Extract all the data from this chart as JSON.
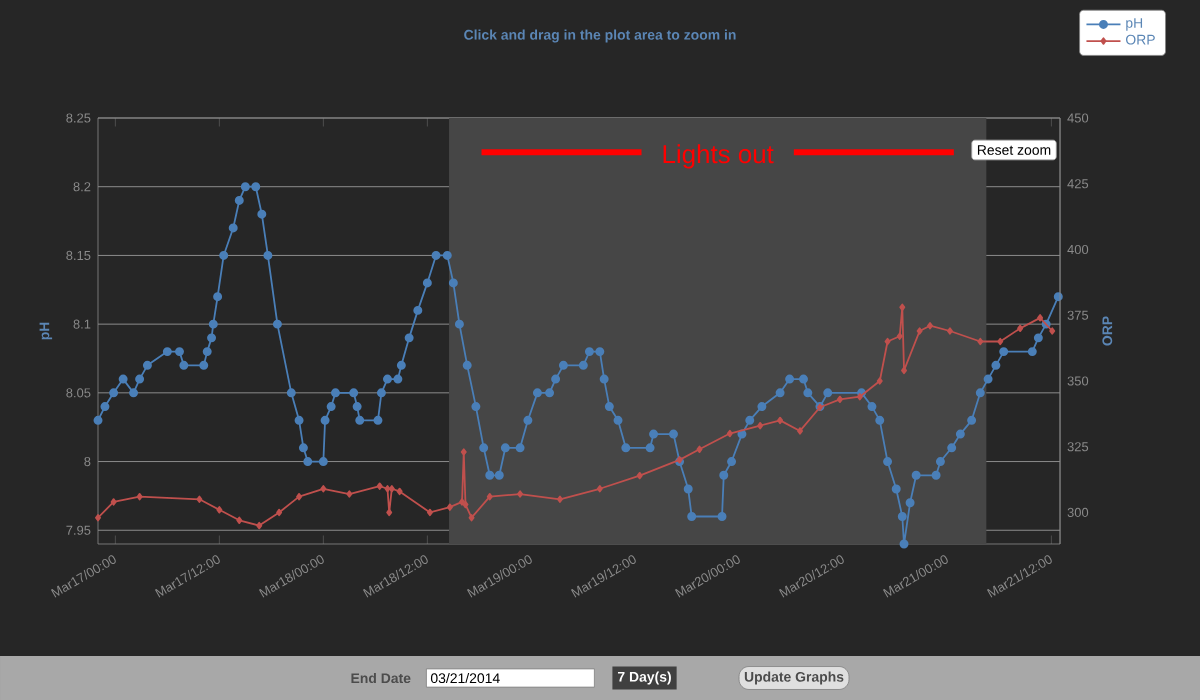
{
  "chart_data": {
    "type": "line",
    "subtitle": "Click and drag in the plot area to zoom in",
    "ylabel": "pH",
    "y2label": "ORP",
    "xlim": [
      "2014-03-16T22:00",
      "2014-03-21T13:00"
    ],
    "xticks": [
      {
        "value": "2014-03-17T00:00",
        "label": "Mar17/00:00"
      },
      {
        "value": "2014-03-17T12:00",
        "label": "Mar17/12:00"
      },
      {
        "value": "2014-03-18T00:00",
        "label": "Mar18/00:00"
      },
      {
        "value": "2014-03-18T12:00",
        "label": "Mar18/12:00"
      },
      {
        "value": "2014-03-19T00:00",
        "label": "Mar19/00:00"
      },
      {
        "value": "2014-03-19T12:00",
        "label": "Mar19/12:00"
      },
      {
        "value": "2014-03-20T00:00",
        "label": "Mar20/00:00"
      },
      {
        "value": "2014-03-20T12:00",
        "label": "Mar20/12:00"
      },
      {
        "value": "2014-03-21T00:00",
        "label": "Mar21/00:00"
      },
      {
        "value": "2014-03-21T12:00",
        "label": "Mar21/12:00"
      }
    ],
    "ylim": [
      7.94,
      8.25
    ],
    "yticks": [
      7.95,
      8,
      8.05,
      8.1,
      8.15,
      8.2,
      8.25
    ],
    "y2lim": [
      288,
      450
    ],
    "y2ticks": [
      300,
      325,
      350,
      375,
      400,
      425,
      450
    ],
    "grid": "y",
    "legend": "top right",
    "series": [
      {
        "name": "pH",
        "color": "#4a7fb8",
        "marker": "circle",
        "x": [
          "2014-03-16T22:00",
          "2014-03-16T22:48",
          "2014-03-16T23:48",
          "2014-03-17T00:54",
          "2014-03-17T02:06",
          "2014-03-17T02:48",
          "2014-03-17T03:42",
          "2014-03-17T06:00",
          "2014-03-17T07:24",
          "2014-03-17T07:54",
          "2014-03-17T10:12",
          "2014-03-17T10:36",
          "2014-03-17T11:06",
          "2014-03-17T11:18",
          "2014-03-17T11:48",
          "2014-03-17T12:30",
          "2014-03-17T13:36",
          "2014-03-17T14:18",
          "2014-03-17T15:00",
          "2014-03-17T16:12",
          "2014-03-17T16:54",
          "2014-03-17T17:36",
          "2014-03-17T18:42",
          "2014-03-17T20:18",
          "2014-03-17T21:12",
          "2014-03-17T21:42",
          "2014-03-17T22:12",
          "2014-03-18T00:00",
          "2014-03-18T00:12",
          "2014-03-18T00:54",
          "2014-03-18T01:24",
          "2014-03-18T03:30",
          "2014-03-18T03:54",
          "2014-03-18T04:12",
          "2014-03-18T06:18",
          "2014-03-18T06:42",
          "2014-03-18T07:24",
          "2014-03-18T08:36",
          "2014-03-18T09:00",
          "2014-03-18T09:54",
          "2014-03-18T10:54",
          "2014-03-18T12:00",
          "2014-03-18T13:00",
          "2014-03-18T14:18",
          "2014-03-18T15:00",
          "2014-03-18T15:42",
          "2014-03-18T16:36",
          "2014-03-18T17:36",
          "2014-03-18T18:30",
          "2014-03-18T19:12",
          "2014-03-18T20:18",
          "2014-03-18T21:00",
          "2014-03-18T22:42",
          "2014-03-18T23:36",
          "2014-03-19T00:42",
          "2014-03-19T02:06",
          "2014-03-19T02:48",
          "2014-03-19T03:42",
          "2014-03-19T06:00",
          "2014-03-19T06:42",
          "2014-03-19T07:54",
          "2014-03-19T08:24",
          "2014-03-19T09:00",
          "2014-03-19T10:00",
          "2014-03-19T10:54",
          "2014-03-19T13:42",
          "2014-03-19T14:06",
          "2014-03-19T16:24",
          "2014-03-19T17:06",
          "2014-03-19T18:06",
          "2014-03-19T18:30",
          "2014-03-19T22:00",
          "2014-03-19T22:12",
          "2014-03-19T23:06",
          "2014-03-20T00:18",
          "2014-03-20T01:12",
          "2014-03-20T02:36",
          "2014-03-20T04:42",
          "2014-03-20T05:48",
          "2014-03-20T07:24",
          "2014-03-20T07:54",
          "2014-03-20T09:18",
          "2014-03-20T10:12",
          "2014-03-20T14:06",
          "2014-03-20T15:18",
          "2014-03-20T16:12",
          "2014-03-20T17:06",
          "2014-03-20T18:06",
          "2014-03-20T18:48",
          "2014-03-20T19:00",
          "2014-03-20T19:42",
          "2014-03-20T20:24",
          "2014-03-20T22:42",
          "2014-03-20T23:12",
          "2014-03-21T00:30",
          "2014-03-21T01:30",
          "2014-03-21T02:48",
          "2014-03-21T03:48",
          "2014-03-21T04:42",
          "2014-03-21T05:36",
          "2014-03-21T06:30",
          "2014-03-21T09:48",
          "2014-03-21T10:30",
          "2014-03-21T11:24",
          "2014-03-21T12:48"
        ],
        "values": [
          8.03,
          8.04,
          8.05,
          8.06,
          8.05,
          8.06,
          8.07,
          8.08,
          8.08,
          8.07,
          8.07,
          8.08,
          8.09,
          8.1,
          8.12,
          8.15,
          8.17,
          8.19,
          8.2,
          8.2,
          8.18,
          8.15,
          8.1,
          8.05,
          8.03,
          8.01,
          8,
          8,
          8.03,
          8.04,
          8.05,
          8.05,
          8.04,
          8.03,
          8.03,
          8.05,
          8.06,
          8.06,
          8.07,
          8.09,
          8.11,
          8.13,
          8.15,
          8.15,
          8.13,
          8.1,
          8.07,
          8.04,
          8.01,
          7.99,
          7.99,
          8.01,
          8.01,
          8.03,
          8.05,
          8.05,
          8.06,
          8.07,
          8.07,
          8.08,
          8.08,
          8.06,
          8.04,
          8.03,
          8.01,
          8.01,
          8.02,
          8.02,
          8,
          7.98,
          7.96,
          7.96,
          7.99,
          8,
          8.02,
          8.03,
          8.04,
          8.05,
          8.06,
          8.06,
          8.05,
          8.04,
          8.05,
          8.05,
          8.04,
          8.03,
          8,
          7.98,
          7.96,
          7.94,
          7.97,
          7.99,
          7.99,
          8,
          8.01,
          8.02,
          8.03,
          8.05,
          8.06,
          8.07,
          8.08,
          8.08,
          8.09,
          8.1,
          8.12
        ]
      },
      {
        "name": "ORP",
        "color": "#c0504d",
        "marker": "diamond",
        "axis": "y2",
        "x": [
          "2014-03-16T22:00",
          "2014-03-16T23:48",
          "2014-03-17T02:48",
          "2014-03-17T09:42",
          "2014-03-17T12:00",
          "2014-03-17T14:18",
          "2014-03-17T16:36",
          "2014-03-17T18:54",
          "2014-03-17T21:12",
          "2014-03-18T00:00",
          "2014-03-18T03:00",
          "2014-03-18T06:30",
          "2014-03-18T07:24",
          "2014-03-18T07:36",
          "2014-03-18T07:54",
          "2014-03-18T08:48",
          "2014-03-18T12:18",
          "2014-03-18T14:36",
          "2014-03-18T16:00",
          "2014-03-18T16:12",
          "2014-03-18T16:24",
          "2014-03-18T17:06",
          "2014-03-18T19:12",
          "2014-03-18T22:42",
          "2014-03-19T03:18",
          "2014-03-19T07:54",
          "2014-03-19T12:30",
          "2014-03-19T17:06",
          "2014-03-19T19:24",
          "2014-03-19T22:54",
          "2014-03-20T02:24",
          "2014-03-20T04:42",
          "2014-03-20T07:00",
          "2014-03-20T09:18",
          "2014-03-20T11:36",
          "2014-03-20T13:54",
          "2014-03-20T16:12",
          "2014-03-20T17:06",
          "2014-03-20T18:30",
          "2014-03-20T18:48",
          "2014-03-20T19:00",
          "2014-03-20T20:48",
          "2014-03-20T22:00",
          "2014-03-21T00:18",
          "2014-03-21T03:48",
          "2014-03-21T06:06",
          "2014-03-21T08:24",
          "2014-03-21T10:42",
          "2014-03-21T12:06"
        ],
        "values": [
          298,
          304,
          306,
          305,
          301,
          297,
          295,
          300,
          306,
          309,
          307,
          310,
          309,
          300,
          309,
          308,
          300,
          302,
          304,
          323,
          303,
          298,
          306,
          307,
          305,
          309,
          314,
          320,
          324,
          330,
          333,
          335,
          331,
          340,
          343,
          344,
          350,
          365,
          367,
          378,
          354,
          369,
          371,
          369,
          365,
          365,
          370,
          374,
          369
        ]
      }
    ],
    "bands": [
      {
        "axis": "x",
        "from": "2014-03-18T14:30",
        "to": "2014-03-21T04:30",
        "label": "Lights out",
        "color": "#464646"
      }
    ],
    "annotations": [
      "Reset zoom",
      "End Date",
      "03/21/2014",
      "7 Day(s)",
      "Update Graphs"
    ]
  }
}
